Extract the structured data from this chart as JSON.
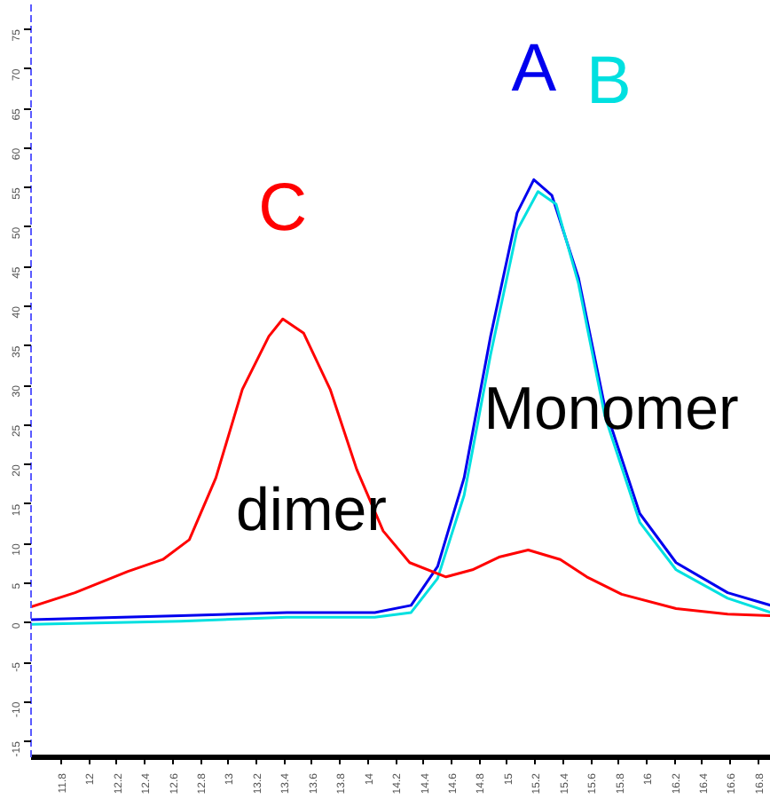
{
  "chart_data": {
    "type": "line",
    "grid": false,
    "marker": "none",
    "line_style": "solid",
    "xlim": [
      11.585,
      16.89
    ],
    "ylim": [
      -17,
      78.6
    ],
    "xticks": [
      11.8,
      12,
      12.2,
      12.4,
      12.6,
      12.8,
      13,
      13.2,
      13.4,
      13.6,
      13.8,
      14,
      14.2,
      14.4,
      14.6,
      14.8,
      15,
      15.2,
      15.4,
      15.6,
      15.8,
      16,
      16.2,
      16.4,
      16.6,
      16.8
    ],
    "yticks": [
      -15,
      -10,
      -5,
      0,
      5,
      10,
      15,
      20,
      25,
      30,
      35,
      40,
      45,
      50,
      55,
      60,
      65,
      70,
      75
    ],
    "series": [
      {
        "name": "A",
        "color": "#0000ee",
        "x": [
          11.585,
          12.66,
          13.42,
          14.05,
          14.31,
          14.5,
          14.69,
          14.88,
          15.07,
          15.19,
          15.32,
          15.51,
          15.7,
          15.95,
          16.21,
          16.58,
          16.89
        ],
        "values": [
          0.4,
          0.9,
          1.3,
          1.3,
          2.2,
          7.1,
          18.3,
          36.2,
          51.8,
          56.0,
          54.0,
          43.6,
          27.2,
          13.8,
          7.6,
          3.8,
          2.2
        ]
      },
      {
        "name": "B",
        "color": "#00e0e0",
        "x": [
          11.585,
          12.66,
          13.42,
          14.05,
          14.31,
          14.5,
          14.69,
          14.88,
          15.07,
          15.22,
          15.35,
          15.51,
          15.7,
          15.95,
          16.21,
          16.58,
          16.89
        ],
        "values": [
          -0.2,
          0.2,
          0.7,
          0.7,
          1.3,
          5.6,
          16.1,
          33.9,
          49.6,
          54.5,
          52.9,
          42.9,
          26.1,
          12.7,
          6.7,
          3.1,
          1.3
        ]
      },
      {
        "name": "C",
        "color": "#ff0000",
        "x": [
          11.585,
          11.9,
          12.28,
          12.53,
          12.72,
          12.91,
          13.1,
          13.29,
          13.39,
          13.54,
          13.73,
          13.92,
          14.11,
          14.3,
          14.56,
          14.75,
          14.94,
          15.15,
          15.38,
          15.57,
          15.82,
          16.21,
          16.58,
          16.89
        ],
        "values": [
          2.0,
          3.8,
          6.5,
          8.0,
          10.5,
          18.3,
          29.5,
          36.2,
          38.4,
          36.6,
          29.5,
          19.4,
          11.6,
          7.6,
          5.8,
          6.7,
          8.3,
          9.2,
          8.0,
          5.8,
          3.6,
          1.8,
          1.1,
          0.9
        ]
      }
    ],
    "annotations": [
      "dimer",
      "Monomer"
    ]
  }
}
